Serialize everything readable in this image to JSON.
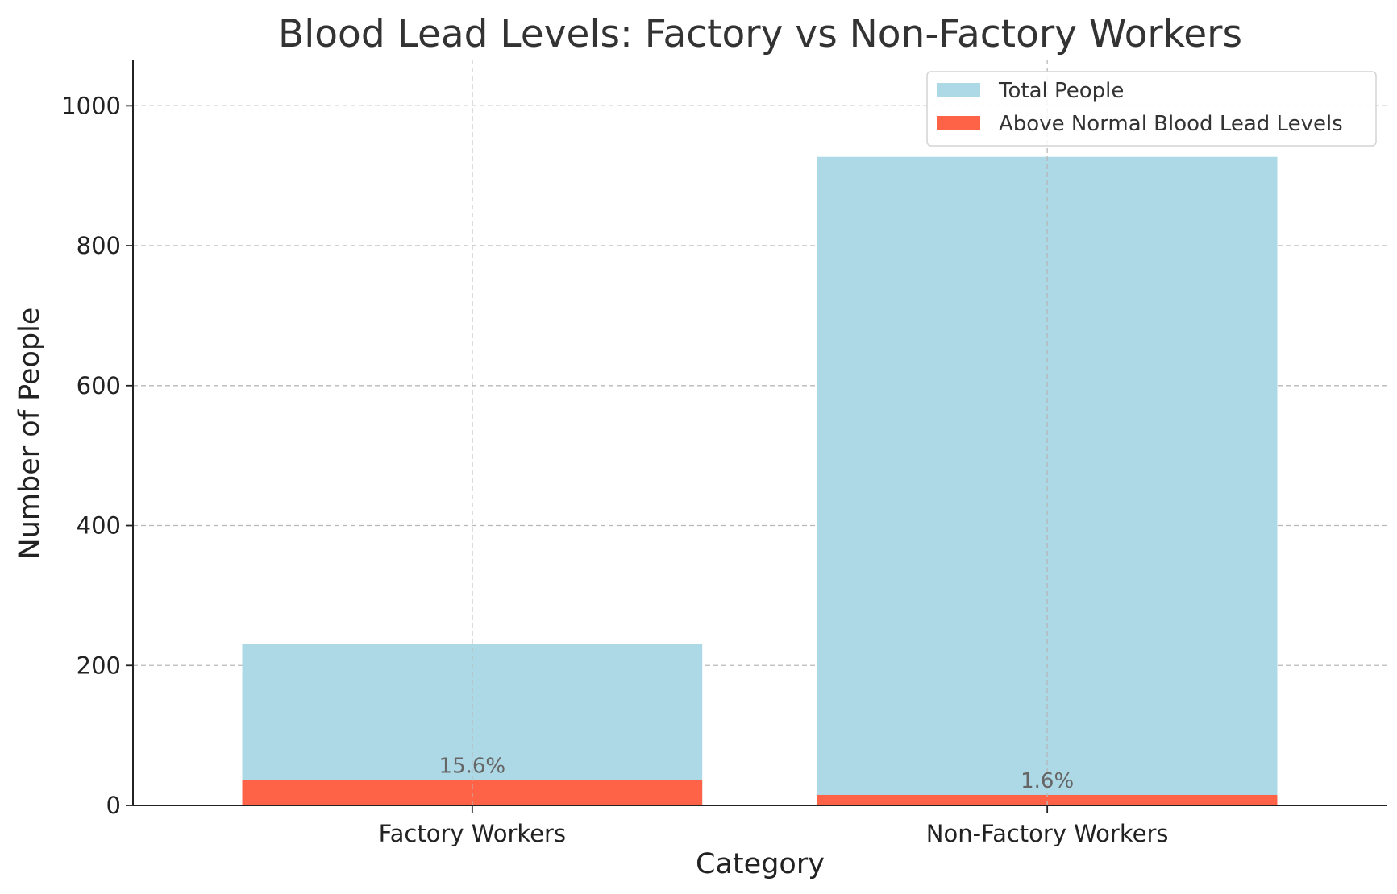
{
  "chart_data": {
    "type": "bar",
    "title": "Blood Lead Levels: Factory vs Non-Factory Workers",
    "xlabel": "Category",
    "ylabel": "Number of People",
    "categories": [
      "Factory Workers",
      "Non-Factory Workers"
    ],
    "series": [
      {
        "name": "Total People",
        "values": [
          231,
          927
        ],
        "color": "#add8e6"
      },
      {
        "name": "Above Normal Blood Lead Levels",
        "values": [
          36,
          15
        ],
        "color": "#ff6347"
      }
    ],
    "data_labels": [
      "15.6%",
      "1.6%"
    ],
    "ylim": [
      0,
      1066
    ],
    "yticks": [
      0,
      200,
      400,
      600,
      800,
      1000
    ],
    "grid": true,
    "legend": "top-right",
    "overlay": true
  }
}
